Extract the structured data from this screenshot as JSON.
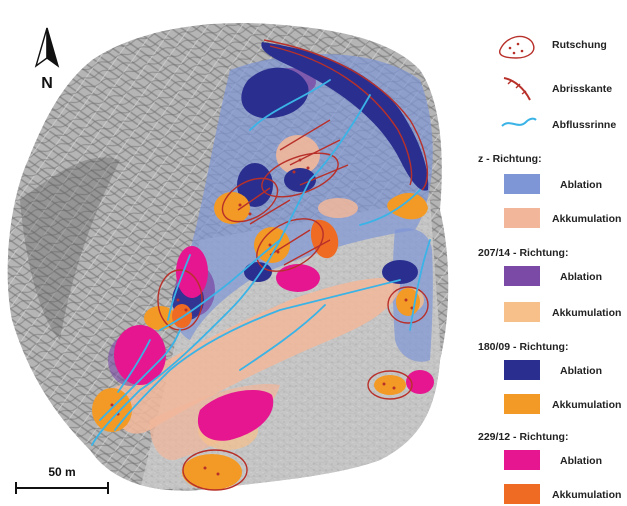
{
  "north": {
    "letter": "N",
    "icon": "north-arrow-icon"
  },
  "scale_bar": {
    "label": "50 m"
  },
  "colors": {
    "z_ablation": "#7f96d6",
    "z_akkumulation": "#f2b79a",
    "r207_ablation": "#7a4aa6",
    "r207_akkumulation": "#f7c08a",
    "r180_ablation": "#2a2f8f",
    "r180_akkumulation": "#f29a25",
    "r229_ablation": "#e5168f",
    "r229_akkumulation": "#ef6a23",
    "rutschung": "#b8302a",
    "abflussrinne": "#3ab3e6"
  },
  "legend": {
    "symbols": [
      {
        "label": "Rutschung",
        "icon": "rutschung-icon"
      },
      {
        "label": "Abrisskante",
        "icon": "abrisskante-icon"
      },
      {
        "label": "Abflussrinne",
        "icon": "abflussrinne-icon"
      }
    ],
    "groups": [
      {
        "heading": "z - Richtung:",
        "items": [
          {
            "label": "Ablation"
          },
          {
            "label": "Akkumulation"
          }
        ]
      },
      {
        "heading": "207/14 - Richtung:",
        "items": [
          {
            "label": "Ablation"
          },
          {
            "label": "Akkumulation"
          }
        ]
      },
      {
        "heading": "180/09 - Richtung:",
        "items": [
          {
            "label": "Ablation"
          },
          {
            "label": "Akkumulation"
          }
        ]
      },
      {
        "heading": "229/12 - Richtung:",
        "items": [
          {
            "label": "Ablation"
          },
          {
            "label": "Akkumulation"
          }
        ]
      }
    ]
  }
}
